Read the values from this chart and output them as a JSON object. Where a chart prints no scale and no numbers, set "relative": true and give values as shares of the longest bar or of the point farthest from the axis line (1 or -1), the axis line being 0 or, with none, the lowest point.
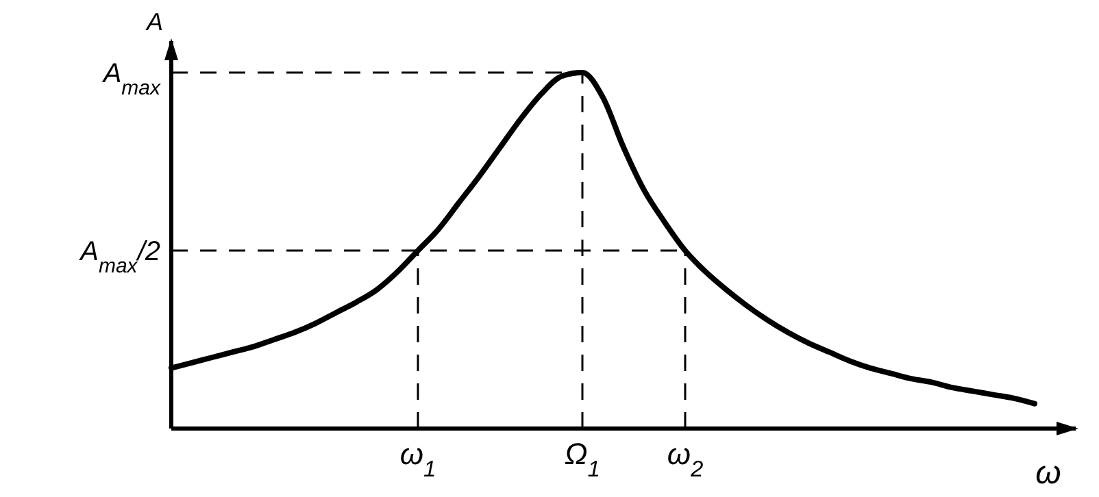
{
  "chart_data": {
    "type": "line",
    "xlabel": "ω",
    "ylabel": "A",
    "relative": true,
    "marker": "none",
    "categories": [
      null,
      null,
      null,
      null,
      null,
      null,
      null,
      null,
      null,
      null,
      null,
      null,
      "ω$_{1}$",
      null,
      null,
      null,
      null,
      null,
      null,
      null,
      "Ω$_{1}$",
      null,
      null,
      null,
      null,
      "ω$_{2}$",
      null,
      null,
      null,
      null,
      null,
      null,
      null,
      null,
      null,
      null,
      null,
      null,
      null,
      null,
      null,
      null,
      null
    ],
    "ref_lines": [
      {
        "axis": "y",
        "value": 1,
        "label": "A$_{max}$",
        "line_style": "dashed",
        "color": "#000000"
      },
      {
        "axis": "y",
        "value": 0.5,
        "label": "A$_{max}$/2",
        "line_style": "dashed",
        "color": "#000000"
      },
      {
        "axis": "x",
        "value": "ω$_{1}$",
        "line_style": "dashed",
        "color": "#000000"
      },
      {
        "axis": "x",
        "value": "Ω$_{1}$",
        "line_style": "dashed",
        "color": "#000000"
      },
      {
        "axis": "x",
        "value": "ω$_{2}$",
        "line_style": "dashed",
        "color": "#000000"
      }
    ],
    "series": [
      {
        "color": "#000000",
        "line_style": "solid",
        "values": [
          0.17,
          0.185,
          0.2,
          0.215,
          0.23,
          0.25,
          0.27,
          0.295,
          0.325,
          0.355,
          0.39,
          0.44,
          0.5,
          0.56,
          0.635,
          0.71,
          0.79,
          0.87,
          0.94,
          0.99,
          1,
          0.93,
          0.79,
          0.67,
          0.58,
          0.5,
          0.44,
          0.39,
          0.345,
          0.305,
          0.27,
          0.24,
          0.215,
          0.19,
          0.17,
          0.155,
          0.14,
          0.13,
          0.115,
          0.105,
          0.095,
          0.085,
          0.07
        ]
      }
    ]
  }
}
